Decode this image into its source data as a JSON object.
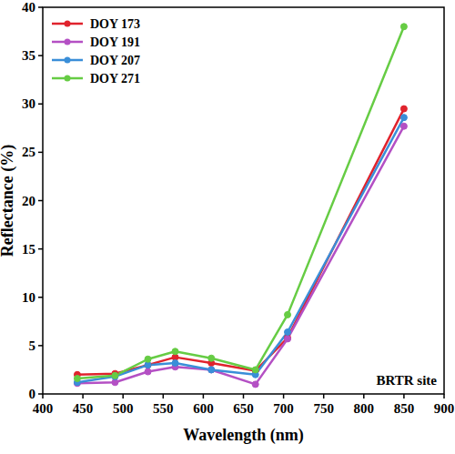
{
  "chart_data": {
    "type": "line",
    "x_label": "Wavelength (nm)",
    "y_label": "Reflectance (%)",
    "annotation": "BRTR site",
    "x": [
      443,
      490,
      531,
      565,
      610,
      665,
      705,
      850
    ],
    "xlim": [
      400,
      900
    ],
    "xticks": [
      400,
      450,
      500,
      550,
      600,
      650,
      700,
      750,
      800,
      850,
      900
    ],
    "ylim": [
      0,
      40
    ],
    "yticks": [
      0,
      5,
      10,
      15,
      20,
      25,
      30,
      35,
      40
    ],
    "grid": false,
    "legend": "upper-left",
    "marker": "circle",
    "series": [
      {
        "name": "DOY 173",
        "color": "#e0232d",
        "values": [
          2.0,
          2.1,
          3.0,
          3.8,
          3.2,
          2.4,
          5.8,
          29.5
        ]
      },
      {
        "name": "DOY 191",
        "color": "#b450c4",
        "values": [
          1.1,
          1.2,
          2.3,
          2.8,
          2.5,
          1.0,
          5.7,
          27.7
        ]
      },
      {
        "name": "DOY 207",
        "color": "#3a8ed8",
        "values": [
          1.2,
          1.8,
          3.0,
          3.2,
          2.5,
          2.0,
          6.4,
          28.6
        ]
      },
      {
        "name": "DOY 271",
        "color": "#66cc44",
        "values": [
          1.6,
          1.9,
          3.6,
          4.4,
          3.7,
          2.5,
          8.2,
          38.0
        ]
      }
    ]
  }
}
